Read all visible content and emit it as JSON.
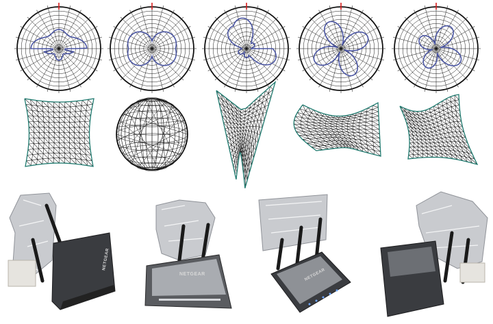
{
  "polar_plots": [
    {
      "id": "pattern-1",
      "shape": "figure-eight"
    },
    {
      "id": "pattern-2",
      "shape": "four-lobe"
    },
    {
      "id": "pattern-3",
      "shape": "three-lobe"
    },
    {
      "id": "pattern-4",
      "shape": "clover"
    },
    {
      "id": "pattern-5",
      "shape": "clover-rotated"
    }
  ],
  "surfaces": [
    {
      "id": "surface-1",
      "shape": "pinched-square"
    },
    {
      "id": "surface-2",
      "shape": "sphere"
    },
    {
      "id": "surface-3",
      "shape": "saddle-v"
    },
    {
      "id": "surface-4",
      "shape": "curved-sheet"
    },
    {
      "id": "surface-5",
      "shape": "warped-sheet"
    }
  ],
  "routers": [
    {
      "id": "router-1",
      "brand": "NETGEAR",
      "reflector": "cylindrical-foil"
    },
    {
      "id": "router-2",
      "brand": "NETGEAR",
      "reflector": "wrapped-foil"
    },
    {
      "id": "router-3",
      "brand": "NETGEAR",
      "reflector": "flat-foil-panel"
    },
    {
      "id": "router-4",
      "brand": "NETGEAR",
      "reflector": "curved-foil-cap"
    }
  ],
  "colors": {
    "pattern_line": "#4a55a2",
    "grid_line": "#111111",
    "north_tick": "#d81e1e",
    "mesh_line": "#111111",
    "mesh_edge": "#1f7a6f",
    "foil": "#c9cbcf",
    "router_body": "#3a3c40"
  }
}
